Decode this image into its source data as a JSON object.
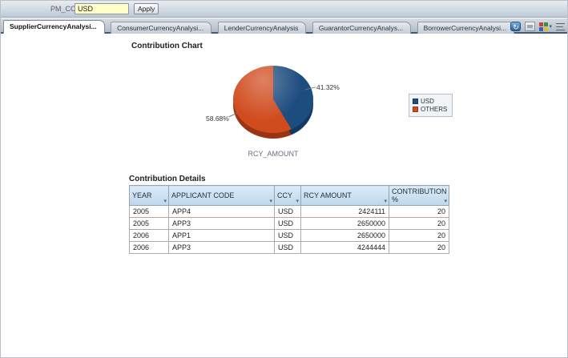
{
  "prompt_bar": {
    "param_label": "PM_CCY",
    "param_value": "USD",
    "apply_label": "Apply"
  },
  "tab_strip": {
    "tabs": [
      {
        "label": "SupplierCurrencyAnalysi...",
        "active": true
      },
      {
        "label": "ConsumerCurrencyAnalysi...",
        "active": false
      },
      {
        "label": "LenderCurrencyAnalysis",
        "active": false
      },
      {
        "label": "GuarantorCurrencyAnalys...",
        "active": false
      },
      {
        "label": "BorrowerCurrencyAnalysi...",
        "active": false
      }
    ],
    "icons": [
      "analyze-icon",
      "export-icon",
      "view-selector-icon",
      "menu-icon"
    ]
  },
  "chart": {
    "title": "Contribution Chart",
    "axis_label": "RCY_AMOUNT",
    "slices": [
      {
        "label": "USD",
        "display": "41.32%",
        "color": "#1d4c7f",
        "side_color": "#123a62"
      },
      {
        "label": "OTHERS",
        "display": "58.68%",
        "color": "#d04b1e",
        "side_color": "#9a3413"
      }
    ]
  },
  "chart_data": {
    "type": "pie",
    "title": "Contribution Chart",
    "labels": [
      "USD",
      "OTHERS"
    ],
    "values": [
      41.32,
      58.68
    ],
    "value_label": "RCY_AMOUNT",
    "legend_position": "right",
    "colors": [
      "#1d4c7f",
      "#d04b1e"
    ]
  },
  "details": {
    "title": "Contribution Details",
    "columns": [
      "YEAR",
      "APPLICANT CODE",
      "CCY",
      "RCY AMOUNT",
      "CONTRIBUTION %"
    ],
    "rows": [
      [
        "2005",
        "APP4",
        "USD",
        "2424111",
        "20"
      ],
      [
        "2005",
        "APP3",
        "USD",
        "2650000",
        "20"
      ],
      [
        "2006",
        "APP1",
        "USD",
        "2650000",
        "20"
      ],
      [
        "2006",
        "APP3",
        "USD",
        "4244444",
        "20"
      ]
    ]
  }
}
